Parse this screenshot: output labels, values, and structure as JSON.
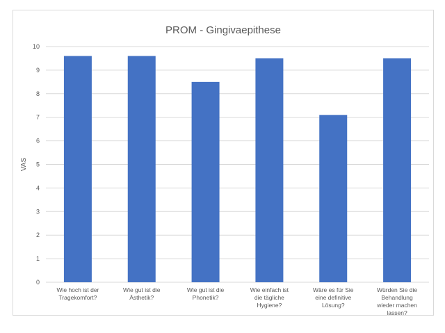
{
  "chart_data": {
    "type": "bar",
    "title": "PROM - Gingivaepithese",
    "xlabel": "",
    "ylabel": "VAS",
    "ylim": [
      0,
      10
    ],
    "yticks": [
      0,
      1,
      2,
      3,
      4,
      5,
      6,
      7,
      8,
      9,
      10
    ],
    "grid": true,
    "legend": "none",
    "bar_color": "#4472c4",
    "categories": [
      [
        "Wie hoch ist der",
        "Tragekomfort?"
      ],
      [
        "Wie gut ist die",
        "Ästhetik?"
      ],
      [
        "Wie gut ist die",
        "Phonetik?"
      ],
      [
        "Wie einfach ist",
        "die tägliche",
        "Hygiene?"
      ],
      [
        "Wäre es für Sie",
        "eine definitive",
        "Lösung?"
      ],
      [
        "Würden Sie die",
        "Behandlung",
        "wieder machen",
        "lassen?"
      ]
    ],
    "values": [
      9.6,
      9.6,
      8.5,
      9.5,
      7.1,
      9.5
    ]
  }
}
